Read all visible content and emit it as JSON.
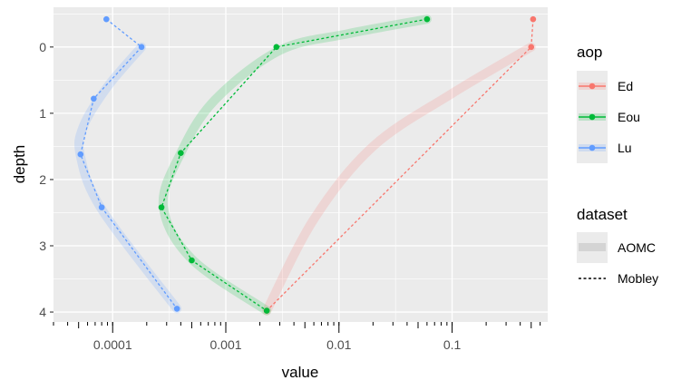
{
  "chart_data": {
    "type": "line",
    "xlabel": "value",
    "ylabel": "depth",
    "x_scale": "log10",
    "xlim": [
      3e-05,
      0.7
    ],
    "ylim": [
      -0.6,
      4.15
    ],
    "y_reversed": true,
    "x_ticks": [
      0.0001,
      0.001,
      0.01,
      0.1
    ],
    "x_tick_labels": [
      "0.0001",
      "0.001",
      "0.01",
      "0.1"
    ],
    "y_ticks": [
      0,
      1,
      2,
      3,
      4
    ],
    "y_tick_labels": [
      "0",
      "1",
      "2",
      "3",
      "4"
    ],
    "grid": true,
    "legend_position": "right",
    "legends": [
      {
        "title": "aop",
        "entries": [
          {
            "label": "Ed",
            "color": "#F8766D"
          },
          {
            "label": "Eou",
            "color": "#00BA38"
          },
          {
            "label": "Lu",
            "color": "#619CFF"
          }
        ]
      },
      {
        "title": "dataset",
        "entries": [
          {
            "label": "AOMC",
            "style": "band"
          },
          {
            "label": "Mobley",
            "style": "dashed"
          }
        ]
      }
    ],
    "series": [
      {
        "name": "Ed",
        "color": "#F8766D",
        "dataset": "Mobley",
        "points": [
          [
            0.52,
            -0.42
          ],
          [
            0.5,
            0.0
          ],
          [
            0.0023,
            3.98
          ]
        ]
      },
      {
        "name": "Eou",
        "color": "#00BA38",
        "dataset": "Mobley",
        "points": [
          [
            0.06,
            -0.42
          ],
          [
            0.0028,
            0.0
          ],
          [
            0.0004,
            1.6
          ],
          [
            0.00027,
            2.42
          ],
          [
            0.0005,
            3.22
          ],
          [
            0.0023,
            3.98
          ]
        ]
      },
      {
        "name": "Lu",
        "color": "#619CFF",
        "dataset": "Mobley",
        "points": [
          [
            8.8e-05,
            -0.42
          ],
          [
            0.00018,
            0.0
          ],
          [
            6.8e-05,
            0.78
          ],
          [
            5.2e-05,
            1.62
          ],
          [
            8e-05,
            2.42
          ],
          [
            0.00037,
            3.95
          ]
        ]
      },
      {
        "name": "Ed",
        "color": "#F8766D",
        "dataset": "AOMC",
        "points": [
          [
            0.5,
            0.0
          ],
          [
            0.1,
            0.7
          ],
          [
            0.02,
            1.5
          ],
          [
            0.006,
            2.6
          ],
          [
            0.0023,
            3.98
          ]
        ]
      },
      {
        "name": "Eou",
        "color": "#00BA38",
        "dataset": "AOMC",
        "points": [
          [
            0.06,
            -0.42
          ],
          [
            0.012,
            -0.2
          ],
          [
            0.003,
            0.05
          ],
          [
            0.0008,
            0.8
          ],
          [
            0.0004,
            1.6
          ],
          [
            0.00028,
            2.4
          ],
          [
            0.0005,
            3.2
          ],
          [
            0.0023,
            3.98
          ]
        ]
      },
      {
        "name": "Lu",
        "color": "#619CFF",
        "dataset": "AOMC",
        "points": [
          [
            0.00018,
            0.0
          ],
          [
            9e-05,
            0.6
          ],
          [
            5.5e-05,
            1.2
          ],
          [
            5.2e-05,
            1.65
          ],
          [
            8e-05,
            2.45
          ],
          [
            0.00037,
            3.95
          ]
        ]
      }
    ]
  }
}
